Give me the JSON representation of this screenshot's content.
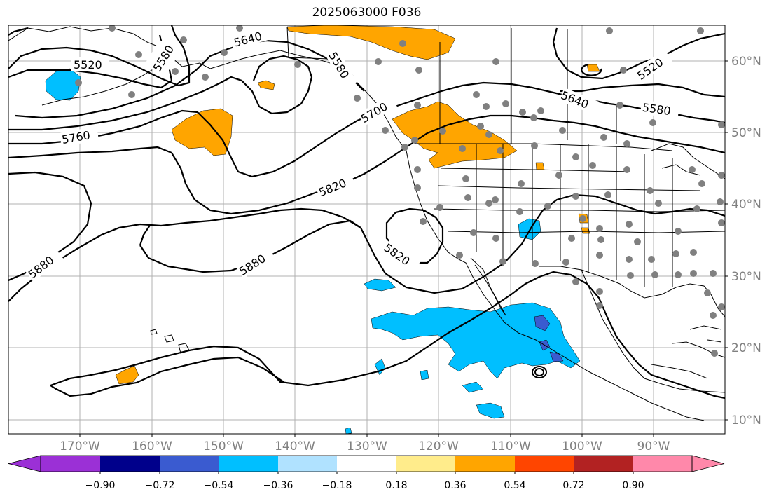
{
  "title": "2025063000 F036",
  "map": {
    "lat_labels": [
      "60°N",
      "50°N",
      "40°N",
      "30°N",
      "20°N",
      "10°N"
    ],
    "lon_labels": [
      "170°W",
      "160°W",
      "150°W",
      "140°W",
      "130°W",
      "120°W",
      "110°W",
      "100°W",
      "90°W"
    ],
    "contour_labels": [
      "5520",
      "5580",
      "5640",
      "5580",
      "5520",
      "5640",
      "5580",
      "5760",
      "5700",
      "5820",
      "5820",
      "5880",
      "5880"
    ],
    "land_outline_color": "#000000",
    "station_color": "#808080",
    "grid_color": "#b0b0b0"
  },
  "colorbar": {
    "tick_labels": [
      "−0.90",
      "−0.72",
      "−0.54",
      "−0.36",
      "−0.18",
      "0.18",
      "0.36",
      "0.54",
      "0.72",
      "0.90"
    ],
    "colors": [
      "#9b30d6",
      "#00008b",
      "#3a5bd0",
      "#00bfff",
      "#b0e2ff",
      "#ffffff",
      "#ffec8b",
      "#ffa500",
      "#ff4500",
      "#b22222",
      "#ff88aa"
    ]
  }
}
